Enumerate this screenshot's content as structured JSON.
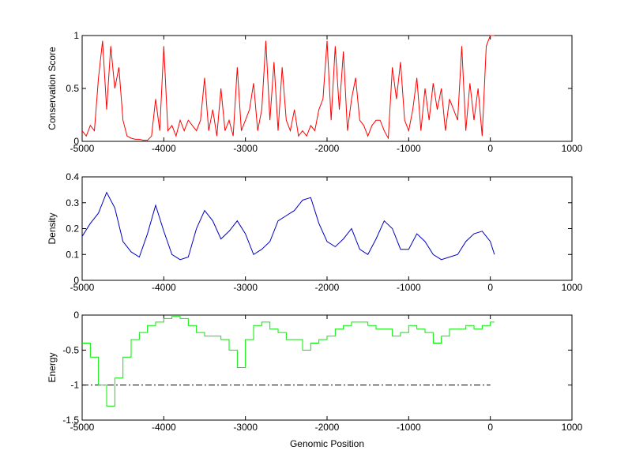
{
  "chart_data": [
    {
      "type": "line",
      "ylabel": "Conservation Score",
      "xlim": [
        -5000,
        1000
      ],
      "xticks": [
        -5000,
        -4000,
        -3000,
        -2000,
        -1000,
        0,
        1000
      ],
      "ylim": [
        0,
        1
      ],
      "yticks": [
        0,
        0.5,
        1
      ],
      "series": [
        {
          "color": "#ff0000",
          "x": [
            -5000,
            -4950,
            -4900,
            -4850,
            -4800,
            -4750,
            -4700,
            -4650,
            -4600,
            -4550,
            -4500,
            -4450,
            -4400,
            -4350,
            -4300,
            -4250,
            -4200,
            -4150,
            -4100,
            -4050,
            -4000,
            -3950,
            -3900,
            -3850,
            -3800,
            -3750,
            -3700,
            -3650,
            -3600,
            -3550,
            -3500,
            -3450,
            -3400,
            -3350,
            -3300,
            -3250,
            -3200,
            -3150,
            -3100,
            -3050,
            -3000,
            -2950,
            -2900,
            -2850,
            -2800,
            -2750,
            -2700,
            -2650,
            -2600,
            -2550,
            -2500,
            -2450,
            -2400,
            -2350,
            -2300,
            -2250,
            -2200,
            -2150,
            -2100,
            -2050,
            -2000,
            -1950,
            -1900,
            -1850,
            -1800,
            -1750,
            -1700,
            -1650,
            -1600,
            -1550,
            -1500,
            -1450,
            -1400,
            -1350,
            -1300,
            -1250,
            -1200,
            -1150,
            -1100,
            -1050,
            -1000,
            -950,
            -900,
            -850,
            -800,
            -750,
            -700,
            -650,
            -600,
            -550,
            -500,
            -450,
            -400,
            -350,
            -300,
            -250,
            -200,
            -150,
            -100,
            -50,
            0,
            50
          ],
          "values": [
            0.1,
            0.05,
            0.15,
            0.1,
            0.6,
            0.95,
            0.3,
            0.9,
            0.5,
            0.7,
            0.2,
            0.05,
            0.03,
            0.02,
            0.02,
            0.01,
            0.01,
            0.05,
            0.4,
            0.1,
            0.9,
            0.1,
            0.15,
            0.05,
            0.2,
            0.1,
            0.2,
            0.15,
            0.1,
            0.2,
            0.6,
            0.1,
            0.3,
            0.05,
            0.5,
            0.1,
            0.2,
            0.05,
            0.7,
            0.1,
            0.2,
            0.3,
            0.55,
            0.1,
            0.3,
            0.95,
            0.2,
            0.75,
            0.1,
            0.7,
            0.2,
            0.1,
            0.3,
            0.05,
            0.1,
            0.05,
            0.15,
            0.1,
            0.3,
            0.4,
            0.95,
            0.2,
            0.9,
            0.3,
            0.85,
            0.1,
            0.4,
            0.6,
            0.2,
            0.15,
            0.05,
            0.15,
            0.2,
            0.2,
            0.1,
            0.03,
            0.7,
            0.4,
            0.75,
            0.2,
            0.1,
            0.3,
            0.6,
            0.1,
            0.5,
            0.2,
            0.55,
            0.3,
            0.5,
            0.1,
            0.4,
            0.3,
            0.2,
            0.9,
            0.1,
            0.55,
            0.2,
            0.5,
            0.05,
            0.9,
            1,
            1
          ]
        }
      ]
    },
    {
      "type": "line",
      "ylabel": "Density",
      "xlim": [
        -5000,
        1000
      ],
      "xticks": [
        -5000,
        -4000,
        -3000,
        -2000,
        -1000,
        0,
        1000
      ],
      "ylim": [
        0,
        0.4
      ],
      "yticks": [
        0,
        0.1,
        0.2,
        0.3,
        0.4
      ],
      "series": [
        {
          "color": "#0000c0",
          "x": [
            -5000,
            -4900,
            -4800,
            -4700,
            -4600,
            -4500,
            -4400,
            -4300,
            -4200,
            -4100,
            -4000,
            -3900,
            -3800,
            -3700,
            -3600,
            -3500,
            -3400,
            -3300,
            -3200,
            -3100,
            -3000,
            -2900,
            -2800,
            -2700,
            -2600,
            -2500,
            -2400,
            -2300,
            -2200,
            -2100,
            -2000,
            -1900,
            -1800,
            -1700,
            -1600,
            -1500,
            -1400,
            -1300,
            -1200,
            -1100,
            -1000,
            -900,
            -800,
            -700,
            -600,
            -500,
            -400,
            -300,
            -200,
            -100,
            0,
            50
          ],
          "values": [
            0.17,
            0.22,
            0.26,
            0.34,
            0.28,
            0.15,
            0.11,
            0.09,
            0.18,
            0.29,
            0.19,
            0.1,
            0.08,
            0.09,
            0.2,
            0.27,
            0.23,
            0.16,
            0.19,
            0.23,
            0.18,
            0.1,
            0.12,
            0.15,
            0.23,
            0.25,
            0.27,
            0.31,
            0.32,
            0.22,
            0.15,
            0.13,
            0.16,
            0.2,
            0.12,
            0.1,
            0.16,
            0.23,
            0.2,
            0.12,
            0.12,
            0.18,
            0.15,
            0.1,
            0.08,
            0.09,
            0.1,
            0.15,
            0.18,
            0.19,
            0.15,
            0.1
          ]
        }
      ]
    },
    {
      "type": "step",
      "ylabel": "Energy",
      "xlabel": "Genomic Position",
      "xlim": [
        -5000,
        1000
      ],
      "xticks": [
        -5000,
        -4000,
        -3000,
        -2000,
        -1000,
        0,
        1000
      ],
      "ylim": [
        -1.5,
        0
      ],
      "yticks": [
        -1.5,
        -1,
        -0.5,
        0
      ],
      "hline": {
        "y": -1,
        "x": [
          -5000,
          0
        ],
        "color": "#000000"
      },
      "series": [
        {
          "color": "#00ee00",
          "x": [
            -5000,
            -4900,
            -4800,
            -4700,
            -4600,
            -4500,
            -4400,
            -4300,
            -4200,
            -4100,
            -4000,
            -3900,
            -3800,
            -3700,
            -3600,
            -3500,
            -3400,
            -3300,
            -3200,
            -3100,
            -3000,
            -2900,
            -2800,
            -2700,
            -2600,
            -2500,
            -2400,
            -2300,
            -2200,
            -2100,
            -2000,
            -1900,
            -1800,
            -1700,
            -1600,
            -1500,
            -1400,
            -1300,
            -1200,
            -1100,
            -1000,
            -900,
            -800,
            -700,
            -600,
            -500,
            -400,
            -300,
            -200,
            -100,
            0,
            50
          ],
          "values": [
            -0.4,
            -0.6,
            -1.0,
            -1.3,
            -0.9,
            -0.6,
            -0.35,
            -0.25,
            -0.15,
            -0.1,
            -0.05,
            -0.02,
            -0.05,
            -0.15,
            -0.25,
            -0.3,
            -0.3,
            -0.35,
            -0.5,
            -0.75,
            -0.35,
            -0.15,
            -0.1,
            -0.2,
            -0.25,
            -0.35,
            -0.35,
            -0.5,
            -0.4,
            -0.35,
            -0.3,
            -0.2,
            -0.15,
            -0.1,
            -0.1,
            -0.15,
            -0.2,
            -0.2,
            -0.3,
            -0.25,
            -0.15,
            -0.2,
            -0.25,
            -0.4,
            -0.3,
            -0.2,
            -0.2,
            -0.15,
            -0.2,
            -0.15,
            -0.1,
            -0.1
          ]
        }
      ]
    }
  ]
}
